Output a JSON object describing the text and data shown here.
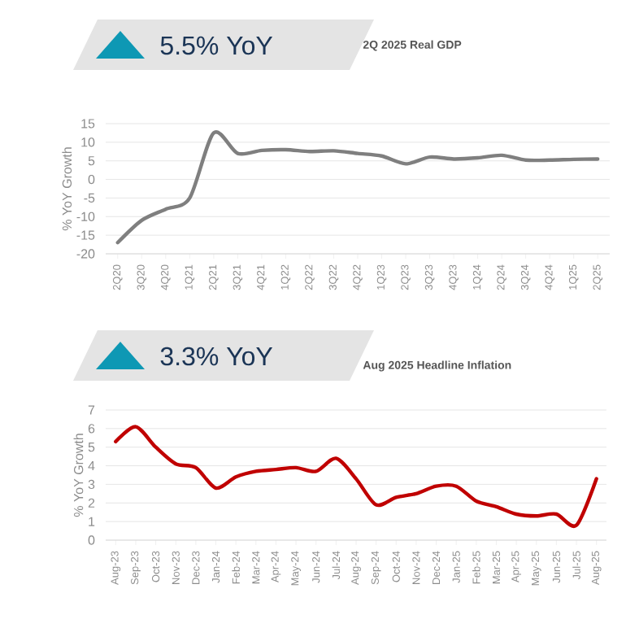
{
  "chart_data": [
    {
      "type": "line",
      "title": "5.5% YoY",
      "subtitle": "2Q 2025 Real GDP",
      "ylabel": "% YoY Growth",
      "categories": [
        "2Q20",
        "3Q20",
        "4Q20",
        "1Q21",
        "2Q21",
        "3Q21",
        "4Q21",
        "1Q22",
        "2Q22",
        "3Q22",
        "4Q22",
        "1Q23",
        "2Q23",
        "3Q23",
        "4Q23",
        "1Q24",
        "2Q24",
        "3Q24",
        "4Q24",
        "1Q25",
        "2Q25"
      ],
      "series": [
        {
          "color": "#7f7f7f",
          "values": [
            -17,
            -11,
            -8,
            -5,
            12.5,
            7,
            7.8,
            8,
            7.5,
            7.7,
            7,
            6.3,
            4.2,
            6,
            5.5,
            5.8,
            6.5,
            5.2,
            5.2,
            5.4,
            5.5
          ]
        }
      ],
      "ylim": [
        -20,
        15
      ],
      "yticks": [
        -20,
        -15,
        -10,
        -5,
        0,
        5,
        10,
        15
      ],
      "grid": "y",
      "marker": "none"
    },
    {
      "type": "line",
      "title": "3.3% YoY",
      "subtitle": "Aug 2025 Headline Inflation",
      "ylabel": "% YoY Growth",
      "categories": [
        "Aug-23",
        "Sep-23",
        "Oct-23",
        "Nov-23",
        "Dec-23",
        "Jan-24",
        "Feb-24",
        "Mar-24",
        "Apr-24",
        "May-24",
        "Jun-24",
        "Jul-24",
        "Aug-24",
        "Sep-24",
        "Oct-24",
        "Nov-24",
        "Dec-24",
        "Jan-25",
        "Feb-25",
        "Mar-25",
        "Apr-25",
        "May-25",
        "Jun-25",
        "Jul-25",
        "Aug-25"
      ],
      "series": [
        {
          "color": "#c00000",
          "values": [
            5.3,
            6.1,
            5.0,
            4.1,
            3.9,
            2.8,
            3.4,
            3.7,
            3.8,
            3.9,
            3.7,
            4.4,
            3.3,
            1.9,
            2.3,
            2.5,
            2.9,
            2.9,
            2.1,
            1.8,
            1.4,
            1.3,
            1.4,
            0.8,
            3.3
          ]
        }
      ],
      "ylim": [
        0,
        7
      ],
      "yticks": [
        0,
        1,
        2,
        3,
        4,
        5,
        6,
        7
      ],
      "grid": "y",
      "marker": "none"
    }
  ]
}
